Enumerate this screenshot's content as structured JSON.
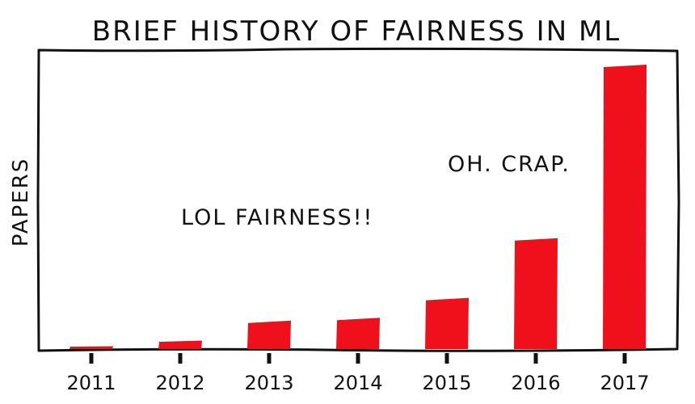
{
  "chart_data": {
    "type": "bar",
    "title": "BRIEF HISTORY OF FAIRNESS IN ML",
    "xlabel": "",
    "ylabel": "PAPERS",
    "categories": [
      "2011",
      "2012",
      "2013",
      "2014",
      "2015",
      "2016",
      "2017"
    ],
    "values": [
      1,
      3,
      10,
      11,
      18,
      39,
      100
    ],
    "ylim": [
      0,
      100
    ],
    "grid": false,
    "legend": "none",
    "bar_color": "#f0101c",
    "annotations": [
      {
        "text": "LOL FAIRNESS!!"
      },
      {
        "text": "OH. CRAP."
      }
    ]
  }
}
